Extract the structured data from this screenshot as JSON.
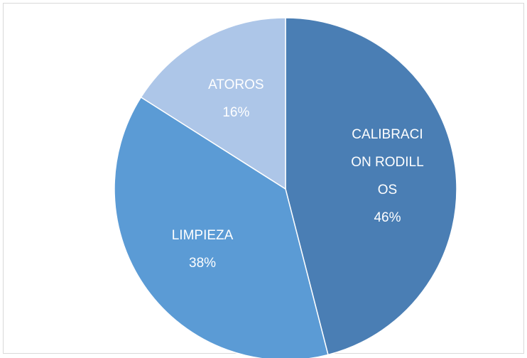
{
  "chart_data": {
    "type": "pie",
    "categories": [
      "CALIBRACION RODILLOS",
      "LIMPIEZA",
      "ATOROS"
    ],
    "values": [
      46,
      38,
      16
    ],
    "value_labels": [
      "46%",
      "38%",
      "16%"
    ],
    "colors": [
      "#4a7eb4",
      "#5b9bd5",
      "#adc6e8"
    ]
  }
}
